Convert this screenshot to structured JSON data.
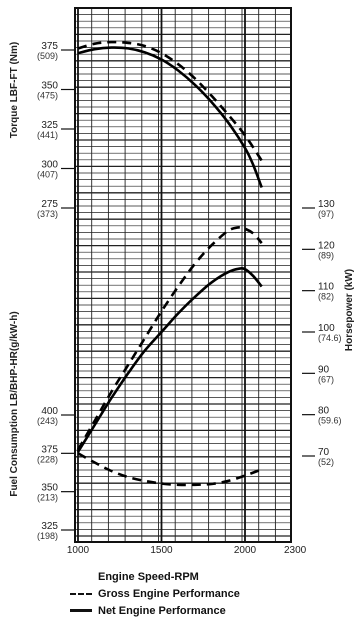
{
  "chart_data": {
    "type": "line",
    "xlabel": "Engine Speed-RPM",
    "x_ticks": [
      "1000",
      "1500",
      "2000",
      "2300"
    ],
    "x_range": [
      1000,
      2300
    ],
    "torque_axis": {
      "label": "Torque LBF-FT (Nm)",
      "ticks": [
        {
          "value": 375,
          "main": "375",
          "sub": "(509)"
        },
        {
          "value": 350,
          "main": "350",
          "sub": "(475)"
        },
        {
          "value": 325,
          "main": "325",
          "sub": "(441)"
        },
        {
          "value": 300,
          "main": "300",
          "sub": "(407)"
        },
        {
          "value": 275,
          "main": "275",
          "sub": "(373)"
        }
      ]
    },
    "horsepower_axis": {
      "label": "Horsepower (kW)",
      "ticks": [
        {
          "value": 130,
          "main": "130",
          "sub": "(97)"
        },
        {
          "value": 120,
          "main": "120",
          "sub": "(89)"
        },
        {
          "value": 110,
          "main": "110",
          "sub": "(82)"
        },
        {
          "value": 100,
          "main": "100",
          "sub": "(74.6)"
        },
        {
          "value": 90,
          "main": "90",
          "sub": "(67)"
        },
        {
          "value": 80,
          "main": "80",
          "sub": "(59.6)"
        },
        {
          "value": 70,
          "main": "70",
          "sub": "(52)"
        }
      ]
    },
    "fuel_axis": {
      "label": "Fuel Consumption LB/BHP-HR(g/kW-h)",
      "ticks": [
        {
          "value": 400,
          "main": "400",
          "sub": "(243)"
        },
        {
          "value": 375,
          "main": "375",
          "sub": "(228)"
        },
        {
          "value": 350,
          "main": "350",
          "sub": "(213)"
        },
        {
          "value": 325,
          "main": "325",
          "sub": "(198)"
        }
      ]
    },
    "series": [
      {
        "name": "Gross Engine Performance",
        "quantity": "torque",
        "style": "dashed",
        "x": [
          1000,
          1100,
          1200,
          1300,
          1400,
          1500,
          1600,
          1700,
          1800,
          1900,
          2000,
          2100
        ],
        "y": [
          376,
          379,
          380,
          379.5,
          377.5,
          373,
          366,
          357,
          346,
          334,
          321,
          305
        ]
      },
      {
        "name": "Net Engine Performance",
        "quantity": "torque",
        "style": "solid",
        "x": [
          1000,
          1100,
          1200,
          1300,
          1400,
          1500,
          1600,
          1700,
          1800,
          1900,
          2000,
          2050,
          2100
        ],
        "y": [
          373,
          375.5,
          376.5,
          376,
          373.5,
          369,
          362,
          353,
          342,
          329,
          313,
          302,
          288
        ]
      },
      {
        "name": "Gross Engine Performance",
        "quantity": "horsepower",
        "style": "dashed",
        "x": [
          1000,
          1100,
          1200,
          1300,
          1400,
          1500,
          1600,
          1700,
          1800,
          1900,
          1960,
          2000,
          2050,
          2100
        ],
        "y": [
          71.5,
          78.5,
          85.5,
          92,
          98.5,
          105,
          111,
          116.5,
          121,
          124.5,
          125.3,
          125,
          123.8,
          121.5
        ]
      },
      {
        "name": "Net Engine Performance",
        "quantity": "horsepower",
        "style": "solid",
        "x": [
          1000,
          1100,
          1200,
          1300,
          1400,
          1500,
          1600,
          1700,
          1800,
          1900,
          1960,
          2000,
          2050,
          2100
        ],
        "y": [
          71,
          77.5,
          84,
          90,
          95.5,
          100,
          104.5,
          108.5,
          112,
          114.5,
          115.3,
          115.2,
          113.5,
          111
        ]
      },
      {
        "name": "Gross Engine Performance",
        "quantity": "fuel",
        "style": "dashed",
        "x": [
          1000,
          1100,
          1200,
          1300,
          1400,
          1500,
          1600,
          1700,
          1800,
          1900,
          2000,
          2100
        ],
        "y": [
          375,
          369,
          363.5,
          359.5,
          357,
          355.3,
          354.5,
          354.5,
          355,
          357,
          360.5,
          364.5
        ]
      }
    ],
    "legend": {
      "title": "Engine Speed-RPM",
      "items": [
        {
          "label": "Gross Engine Performance",
          "style": "dashed"
        },
        {
          "label": "Net Engine Performance",
          "style": "solid"
        }
      ]
    },
    "grid": true
  }
}
